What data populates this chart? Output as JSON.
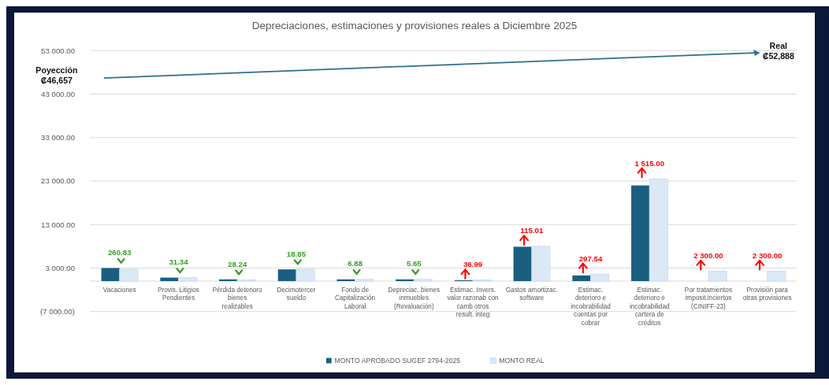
{
  "chart_data": {
    "type": "bar",
    "title": "Depreciaciones, estimaciones y provisiones reales a Diciembre 2025",
    "categories": [
      "Vacaciones",
      "Provis. Litigios Pendientes",
      "Pérdida deterioro bienes realizables",
      "Decimotercer sueldo",
      "Fondo de Capitalización Laboral",
      "Depreciac. bienes inmuebles (Revaluación)",
      "Estimac. Invers. valor razonab con camb otros result. integ",
      "Gastos amortizac. software",
      "Estimac. deterioro e incobrabilidad cuentas por cobrar",
      "Estimac. deterioro e incobrabilidad cartera de créditos",
      "Por tratamientos imposit.inciertos (CINIFF-23)",
      "Provisión para otras provisiones"
    ],
    "series": [
      {
        "name": "MONTO APROBADO SUGEF 2794-2025",
        "color": "#1a5f80",
        "values": [
          3000,
          800,
          400,
          2700,
          400,
          400,
          200,
          7900,
          1300,
          22000,
          0,
          0
        ]
      },
      {
        "name": "MONTO REAL",
        "color": "#dbe9f6",
        "values": [
          2700,
          800,
          300,
          2700,
          400,
          400,
          250,
          8000,
          1600,
          23500,
          2300,
          2300
        ]
      }
    ],
    "ylim": [
      -7000,
      53000
    ],
    "yticks": [
      {
        "value": -7000,
        "label": "(7 000.00)"
      },
      {
        "value": 3000,
        "label": "3 000.00"
      },
      {
        "value": 13000,
        "label": "13 000.00"
      },
      {
        "value": 23000,
        "label": "23 000.00"
      },
      {
        "value": 33000,
        "label": "33 000.00"
      },
      {
        "value": 43000,
        "label": "43 000.00"
      },
      {
        "value": 53000,
        "label": "53 000.00"
      }
    ],
    "grid": "y",
    "legend": "bottom",
    "annotations": [
      {
        "text": "260.83",
        "x": "Vacaciones",
        "y": 3000
      },
      {
        "text": "31.34",
        "x": "Provis. Litigios Pendientes",
        "y": 770
      },
      {
        "text": "28.24",
        "x": "Pérdida deterioro bienes realizables",
        "y": 370
      },
      {
        "text": "18.85",
        "x": "Decimotercer sueldo",
        "y": 2720
      },
      {
        "text": "6.88",
        "x": "Fondo de Capitalización Laboral",
        "y": 440
      },
      {
        "text": "5.65",
        "x": "Depreciac. bienes inmuebles (Revaluación)",
        "y": 436
      },
      {
        "text": "36.99",
        "x": "Estimac. Invers. valor razonab con camb otros result. integ",
        "y": 217
      },
      {
        "text": "115.01",
        "x": "Gastos amortizac. software",
        "y": 7995
      },
      {
        "text": "297.54",
        "x": "Estimac. deterioro e incobrabilidad cuentas por cobrar",
        "y": 1600
      },
      {
        "text": "1 515.00",
        "x": "Estimac. deterioro e incobrabilidad cartera de créditos",
        "y": 23515
      },
      {
        "text": "2 300.00",
        "x": "Por tratamientos imposit.inciertos (CINIFF-23)",
        "y": 2300
      },
      {
        "text": "2 300.00",
        "x": "Provisión para otras provisiones",
        "y": 2300
      },
      "Poyección ₡46,657",
      "Real ₡52,888"
    ]
  }
}
